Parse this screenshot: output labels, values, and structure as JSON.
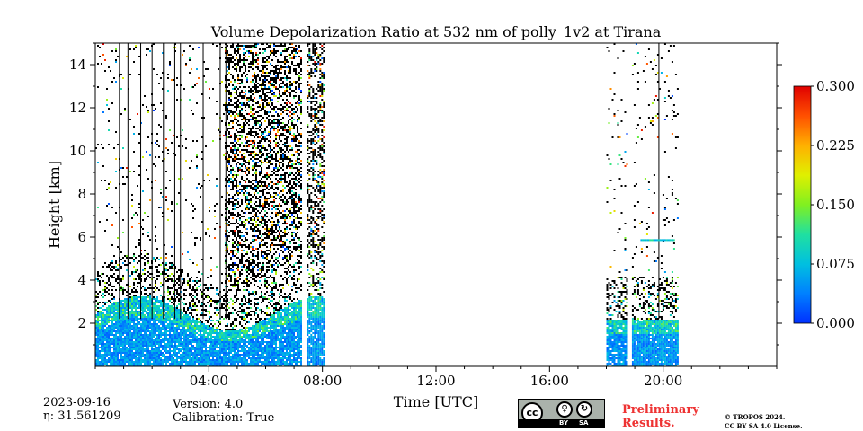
{
  "chart_data": {
    "type": "heatmap",
    "title": "Volume Depolarization Ratio at 532 nm of polly_1v2 at Tirana",
    "xlabel": "Time [UTC]",
    "ylabel": "Height [km]",
    "xlim_hours": [
      0,
      24
    ],
    "ylim_km": [
      0,
      15
    ],
    "x_ticks": [
      {
        "hour": 4,
        "label": "04:00"
      },
      {
        "hour": 8,
        "label": "08:00"
      },
      {
        "hour": 12,
        "label": "12:00"
      },
      {
        "hour": 16,
        "label": "16:00"
      },
      {
        "hour": 20,
        "label": "20:00"
      }
    ],
    "y_ticks": [
      {
        "km": 2,
        "label": "2"
      },
      {
        "km": 4,
        "label": "4"
      },
      {
        "km": 6,
        "label": "6"
      },
      {
        "km": 8,
        "label": "8"
      },
      {
        "km": 10,
        "label": "10"
      },
      {
        "km": 12,
        "label": "12"
      },
      {
        "km": 14,
        "label": "14"
      }
    ],
    "colorbar": {
      "min": 0.0,
      "max": 0.3,
      "colormap": "jet",
      "ticks": [
        {
          "value": 0.0,
          "label": "0.000"
        },
        {
          "value": 0.075,
          "label": "0.075"
        },
        {
          "value": 0.15,
          "label": "0.150"
        },
        {
          "value": 0.225,
          "label": "0.225"
        },
        {
          "value": 0.3,
          "label": "0.300"
        }
      ]
    },
    "data_segments_hours": [
      [
        0.0,
        7.25
      ],
      [
        7.45,
        8.05
      ],
      [
        18.0,
        18.7
      ],
      [
        18.9,
        20.5
      ]
    ],
    "profile_gaps_hours": [
      0.85,
      1.15,
      1.6,
      2.0,
      2.4,
      2.8,
      3.0,
      3.8,
      4.4,
      4.6,
      19.85
    ]
  },
  "footer": {
    "date": "2023-09-16",
    "eta": "η: 31.561209",
    "version": "Version: 4.0",
    "calibration": "Calibration: True",
    "preliminary_line1": "Preliminary",
    "preliminary_line2": "Results.",
    "copyright_line1": "© TROPOS 2024.",
    "copyright_line2": "CC BY SA 4.0 License.",
    "cc_badge": "cc",
    "cc_by": "BY",
    "cc_sa": "SA"
  }
}
